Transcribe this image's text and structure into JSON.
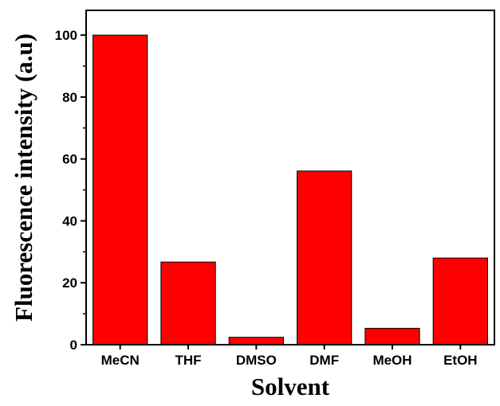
{
  "chart_data": {
    "type": "bar",
    "title": "",
    "xlabel": "Solvent",
    "ylabel": "Fluorescence intensity (a.u)",
    "categories": [
      "MeCN",
      "THF",
      "DMSO",
      "DMF",
      "MeOH",
      "EtOH"
    ],
    "values": [
      100,
      26.7,
      2.4,
      56.1,
      5.3,
      28.0
    ],
    "ylim": [
      0,
      108
    ],
    "yticks": [
      "0",
      "20",
      "40",
      "60",
      "80",
      "100"
    ],
    "bar_color": "#ff0000",
    "grid": false,
    "legend": "none"
  }
}
